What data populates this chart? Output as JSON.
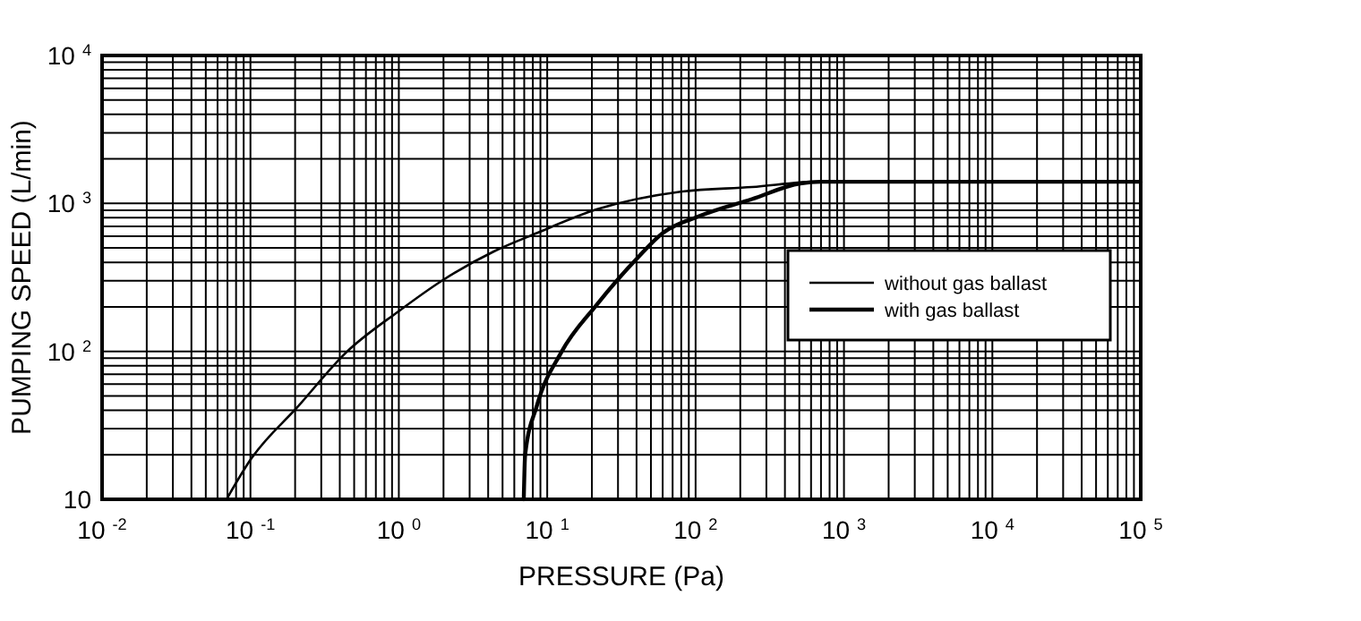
{
  "chart_data": {
    "type": "line",
    "xlabel": "PRESSURE (Pa)",
    "ylabel": "PUMPING SPEED (L/min)",
    "log": "xy",
    "grid": true,
    "legend": "right",
    "line_style": "solid",
    "xlim": [
      0.01,
      100000
    ],
    "ylim": [
      10,
      10000
    ],
    "xticks": [
      {
        "value": 0.01,
        "label": "10$^{-2}$"
      },
      {
        "value": 0.1,
        "label": "10$^{-1}$"
      },
      {
        "value": 1,
        "label": "10$^{0}$"
      },
      {
        "value": 10,
        "label": "10$^{1}$"
      },
      {
        "value": 100,
        "label": "10$^{2}$"
      },
      {
        "value": 1000,
        "label": "10$^{3}$"
      },
      {
        "value": 10000,
        "label": "10$^{4}$"
      },
      {
        "value": 100000,
        "label": "10$^{5}$"
      }
    ],
    "yticks": [
      10,
      {
        "value": 100,
        "label": "10$^{2}$"
      },
      {
        "value": 1000,
        "label": "10$^{3}$"
      },
      {
        "value": 10000,
        "label": "10$^{4}$"
      }
    ],
    "series": [
      {
        "name": "without gas ballast",
        "color": "#000000",
        "x": [
          0.069,
          0.1,
          0.21,
          0.44,
          1,
          1.94,
          4.4,
          8.5,
          21.5,
          79,
          240,
          670,
          1000,
          100000
        ],
        "values": [
          10,
          18.5,
          42.6,
          98,
          187,
          299,
          475,
          630,
          910,
          1200,
          1290,
          1400,
          1400,
          1400
        ]
      },
      {
        "name": "with gas ballast",
        "color": "#000000",
        "x": [
          6.95,
          7.1,
          8.5,
          12.4,
          21.5,
          41,
          60,
          104,
          240,
          507,
          700,
          1000,
          100000
        ],
        "values": [
          10,
          20,
          42.6,
          98,
          206,
          433,
          630,
          815,
          1070,
          1365,
          1400,
          1400,
          1400
        ]
      }
    ]
  }
}
